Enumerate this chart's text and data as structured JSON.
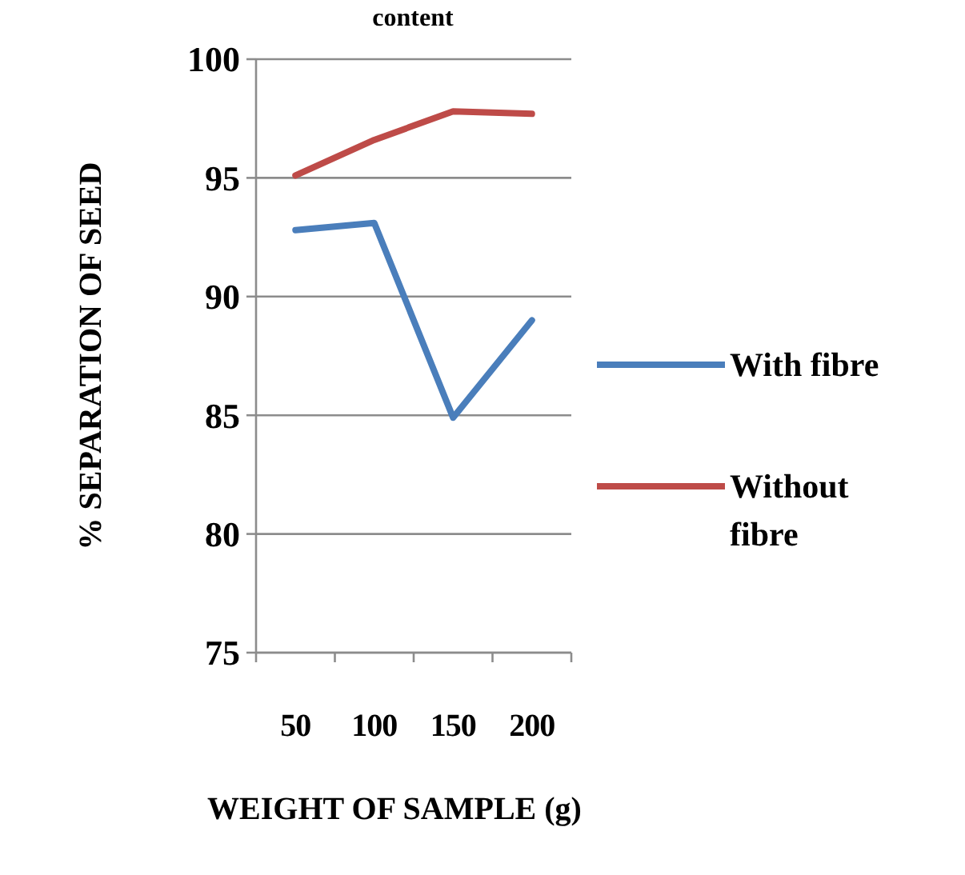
{
  "chart_data": {
    "type": "line",
    "title": "content",
    "xlabel": "WEIGHT OF SAMPLE (g)",
    "ylabel": "% SEPARATION OF SEED",
    "categories": [
      "50",
      "100",
      "150",
      "200"
    ],
    "series": [
      {
        "name": "With fibre",
        "color": "#4a7ebb",
        "values": [
          92.8,
          93.1,
          84.9,
          89.0
        ]
      },
      {
        "name": "Without fibre",
        "color": "#be4b48",
        "values": [
          95.1,
          96.6,
          97.8,
          97.7
        ]
      }
    ],
    "ylim": [
      75,
      100
    ],
    "yticks": [
      75,
      80,
      85,
      90,
      95,
      100
    ],
    "grid": "y",
    "legend": "right",
    "marker": "none",
    "line_style": "solid"
  }
}
